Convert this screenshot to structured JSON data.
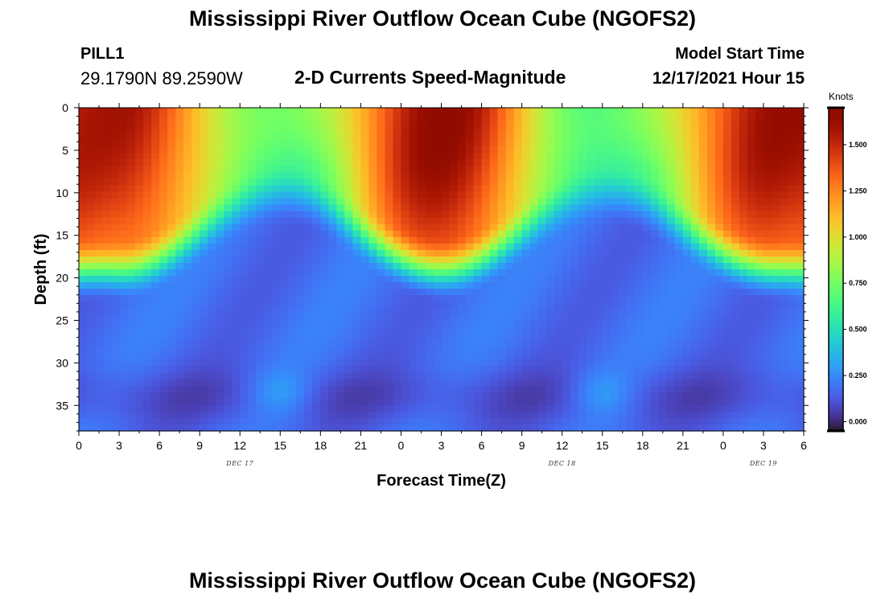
{
  "header": {
    "title": "Mississippi River Outflow Ocean Cube (NGOFS2)",
    "station_id": "PILL1",
    "station_coords": "29.1790N  89.2590W",
    "subtitle": "2-D Currents Speed-Magnitude",
    "model_start_label": "Model Start Time",
    "model_start_value": "12/17/2021 Hour 15"
  },
  "footer": {
    "title": "Mississippi River Outflow Ocean Cube (NGOFS2)"
  },
  "chart_data": {
    "type": "heatmap",
    "title": "2-D Currents Speed-Magnitude",
    "xlabel": "Forecast Time(Z)",
    "ylabel": "Depth (ft)",
    "x_tick_labels": [
      "0",
      "3",
      "6",
      "9",
      "12",
      "15",
      "18",
      "21",
      "0",
      "3",
      "6",
      "9",
      "12",
      "15",
      "18",
      "21",
      "0",
      "3",
      "6"
    ],
    "day_labels": [
      {
        "label": "DEC 17",
        "at_tick": 4
      },
      {
        "label": "DEC 18",
        "at_tick": 12
      },
      {
        "label": "DEC 19",
        "at_tick": 17
      }
    ],
    "x_range_hours": [
      0,
      54
    ],
    "y_ticks": [
      0,
      5,
      10,
      15,
      20,
      25,
      30,
      35
    ],
    "y_range": [
      0,
      38
    ],
    "y_inverted": true,
    "colorbar": {
      "unit": "Knots",
      "range": [
        -0.05,
        1.7
      ],
      "ticks": [
        "0.000",
        "0.250",
        "0.500",
        "0.750",
        "1.000",
        "1.250",
        "1.500"
      ],
      "tick_values": [
        0.0,
        0.25,
        0.5,
        0.75,
        1.0,
        1.25,
        1.5
      ],
      "colormap": "turbo"
    },
    "surface_speed_peaks_knots": [
      {
        "hour": 3,
        "value": 1.55
      },
      {
        "hour": 27,
        "value": 1.65
      },
      {
        "hour": 52,
        "value": 1.6
      }
    ],
    "surface_speed_minima_knots": [
      {
        "hour": 15,
        "value": 0.7
      },
      {
        "hour": 39,
        "value": 0.65
      }
    ]
  }
}
